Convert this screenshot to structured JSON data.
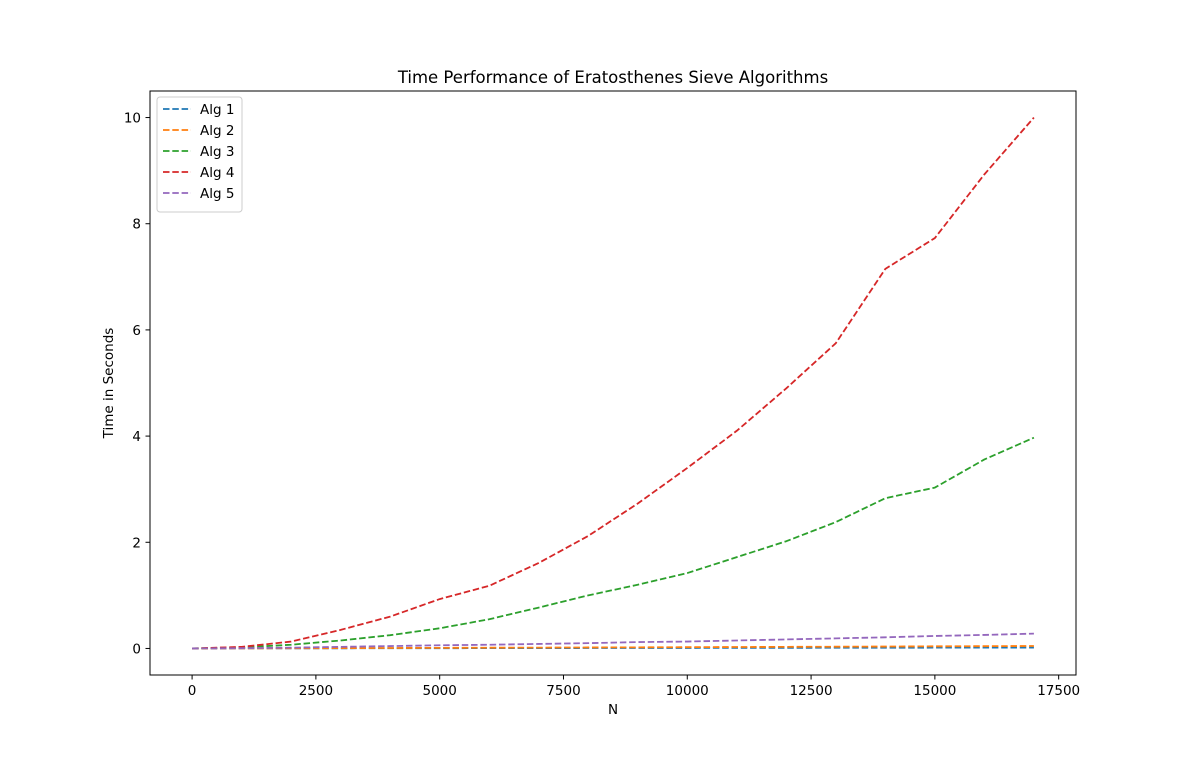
{
  "chart_data": {
    "type": "line",
    "title": "Time Performance of Eratosthenes Sieve Algorithms",
    "xlabel": "N",
    "ylabel": "Time in Seconds",
    "xlim": [
      -850,
      17850
    ],
    "ylim": [
      -0.5,
      10.5
    ],
    "xticks": [
      0,
      2500,
      5000,
      7500,
      10000,
      12500,
      15000,
      17500
    ],
    "yticks": [
      0,
      2,
      4,
      6,
      8,
      10
    ],
    "grid": false,
    "legend_position": "top-left",
    "line_style": "dashed",
    "x": [
      0,
      1000,
      2000,
      3000,
      4000,
      5000,
      6000,
      7000,
      8000,
      9000,
      10000,
      11000,
      12000,
      13000,
      14000,
      15000,
      16000,
      17000
    ],
    "series": [
      {
        "name": "Alg 1",
        "color": "#1f77b4",
        "values": [
          0,
          0.001,
          0.002,
          0.003,
          0.004,
          0.005,
          0.006,
          0.007,
          0.008,
          0.009,
          0.01,
          0.011,
          0.012,
          0.013,
          0.014,
          0.015,
          0.016,
          0.017
        ]
      },
      {
        "name": "Alg 2",
        "color": "#ff7f0e",
        "values": [
          0,
          0.002,
          0.004,
          0.006,
          0.009,
          0.011,
          0.014,
          0.016,
          0.019,
          0.021,
          0.024,
          0.027,
          0.03,
          0.033,
          0.036,
          0.04,
          0.043,
          0.046
        ]
      },
      {
        "name": "Alg 3",
        "color": "#2ca02c",
        "values": [
          0,
          0.02,
          0.07,
          0.15,
          0.25,
          0.38,
          0.55,
          0.77,
          1.0,
          1.2,
          1.42,
          1.72,
          2.02,
          2.38,
          2.83,
          3.03,
          3.56,
          3.97
        ]
      },
      {
        "name": "Alg 4",
        "color": "#d62728",
        "values": [
          0,
          0.03,
          0.13,
          0.35,
          0.6,
          0.93,
          1.18,
          1.61,
          2.12,
          2.73,
          3.4,
          4.1,
          4.9,
          5.75,
          7.15,
          7.73,
          8.93,
          10.0
        ]
      },
      {
        "name": "Alg 5",
        "color": "#9467bd",
        "values": [
          0,
          0.005,
          0.015,
          0.03,
          0.045,
          0.06,
          0.07,
          0.085,
          0.1,
          0.12,
          0.13,
          0.15,
          0.17,
          0.19,
          0.21,
          0.235,
          0.255,
          0.28
        ]
      }
    ]
  }
}
